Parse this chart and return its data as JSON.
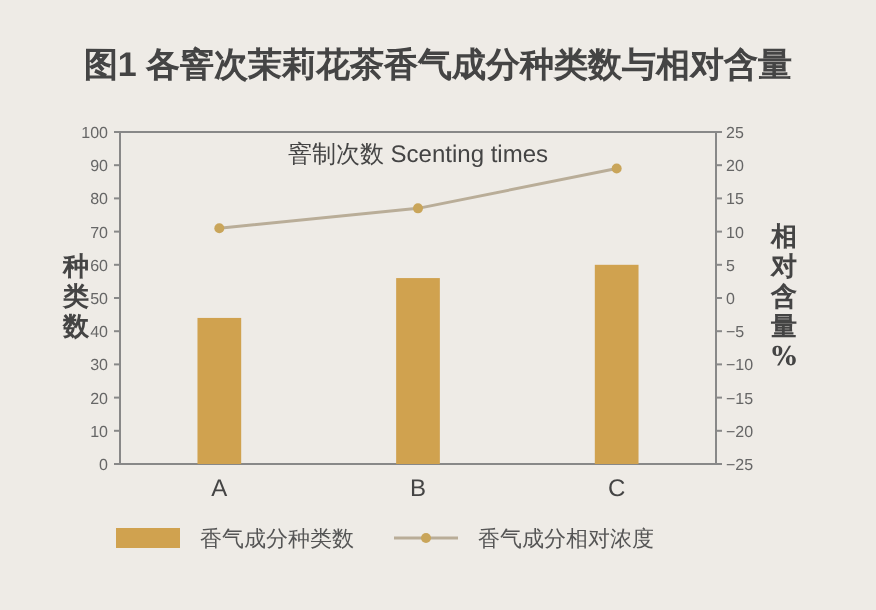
{
  "chart_data": {
    "type": "bar",
    "title": "图1 各窨次茉莉花茶香气成分种类数与相对含量",
    "xlabel": "窨制次数 Scenting times",
    "ylabel": "种类数",
    "y2label": "相对含量%",
    "categories": [
      "A",
      "B",
      "C"
    ],
    "series": [
      {
        "name": "香气成分种类数",
        "color": "#d0a24f",
        "values": [
          44,
          56,
          60
        ]
      },
      {
        "name": "香气成分相对浓度",
        "type": "line",
        "axis": "y2",
        "color": "#b9ad98",
        "values": [
          10.5,
          13.5,
          19.5
        ]
      }
    ],
    "marker": "circle",
    "legend": "bottom",
    "ylim": [
      0,
      100
    ],
    "yticks": [
      0,
      10,
      20,
      30,
      40,
      50,
      60,
      70,
      80,
      90,
      100
    ],
    "y2lim": [
      -25,
      25
    ],
    "y2ticks": [
      -25,
      -20,
      -15,
      -10,
      -5,
      0,
      5,
      10,
      15,
      20,
      25
    ]
  }
}
